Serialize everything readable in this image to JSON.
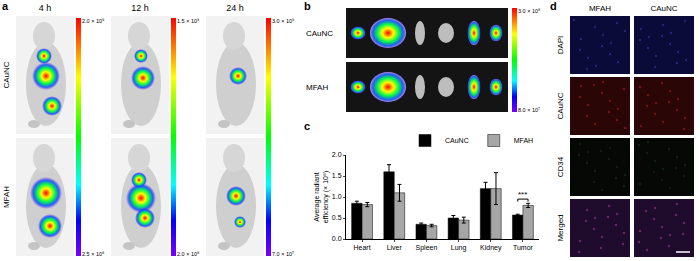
{
  "panel_labels": [
    "a",
    "b",
    "c",
    "d"
  ],
  "panel_a": {
    "times": [
      "4 h",
      "12 h",
      "24 h"
    ],
    "rows": [
      "CAuNC",
      "MFAH"
    ],
    "colorbars": [
      {
        "max": "2.0 × 10⁹",
        "min": "2.5 × 10⁸"
      },
      {
        "max": "1.5 × 10⁹",
        "min": "2.0 × 10⁸"
      },
      {
        "max": "3.0 × 10⁹",
        "min": "7.0 × 10⁷"
      }
    ]
  },
  "panel_b": {
    "rows": [
      "CAuNC",
      "MFAH"
    ],
    "colorbar": {
      "max": "3.0 × 10⁸",
      "min": "8.0 × 10⁷"
    }
  },
  "chart_data": {
    "type": "bar",
    "ylabel": "Average radiant\nefficiency (× 10⁸)",
    "categories": [
      "Heart",
      "Liver",
      "Spleen",
      "Lung",
      "Kidney",
      "Tumor"
    ],
    "series": [
      {
        "name": "CAuNC",
        "color": "#000000",
        "values": [
          0.85,
          1.6,
          0.35,
          0.5,
          1.2,
          0.57
        ],
        "errors": [
          0.05,
          0.17,
          0.03,
          0.06,
          0.15,
          0.02
        ]
      },
      {
        "name": "MFAH",
        "color": "#a6a6a6",
        "values": [
          0.82,
          1.1,
          0.32,
          0.45,
          1.2,
          0.8
        ],
        "errors": [
          0.05,
          0.2,
          0.03,
          0.07,
          0.38,
          0.05
        ]
      }
    ],
    "ylim": [
      0,
      2
    ],
    "yticks": [
      {
        "value": 0,
        "label": "0.0"
      },
      0.5,
      {
        "value": 1,
        "label": "1.0"
      },
      1.5,
      {
        "value": 2,
        "label": "2.0"
      }
    ],
    "legend": "top right",
    "annotations": [
      {
        "text": "***",
        "category": "Tumor"
      }
    ]
  },
  "panel_d": {
    "columns": [
      "MFAH",
      "CAuNC"
    ],
    "rows": [
      "DAPI",
      "CAuNC",
      "CD34",
      "Merged"
    ]
  }
}
